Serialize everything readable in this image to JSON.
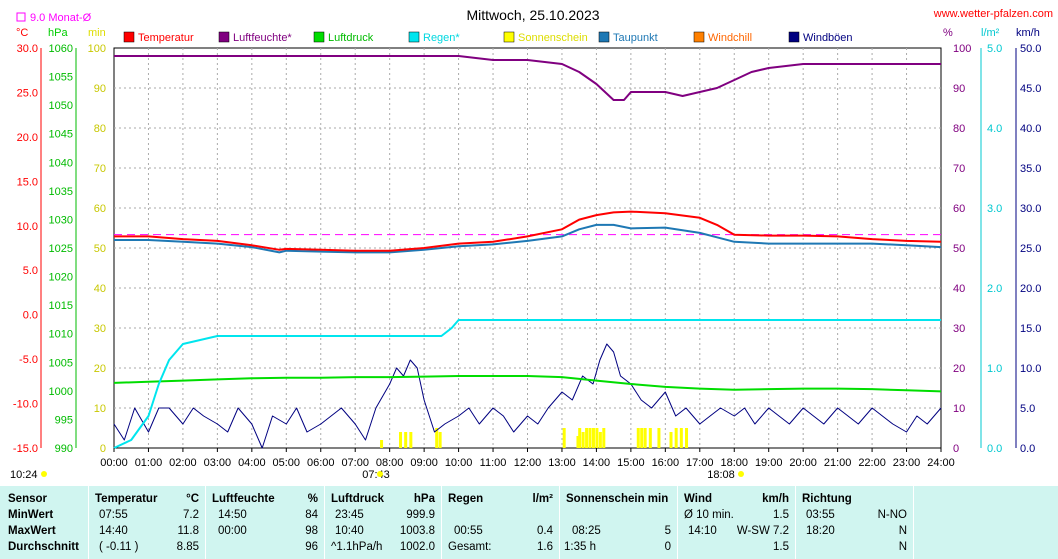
{
  "page": {
    "title": "Mittwoch, 25.10.2023",
    "site": "www.wetter-pfalzen.com",
    "month_avg_label": "9.0 Monat-Ø",
    "unit_celsius": "°C",
    "unit_hpa": "hPa",
    "unit_min": "min",
    "unit_percent": "%",
    "unit_lm2": "l/m²",
    "unit_kmh": "km/h",
    "sunrise": "07:43",
    "sunset": "18:08",
    "first_time": "10:24"
  },
  "colors": {
    "temperature": "#ff0000",
    "humidity": "#800080",
    "pressure": "#00dd00",
    "rain": "#00e5ee",
    "sunshine": "#ffff00",
    "dewpoint": "#1e78b4",
    "windchill": "#ff8000",
    "gust": "#000080",
    "table_bg": "#d0f5f0"
  },
  "chart_data": {
    "type": "line",
    "title": "Mittwoch, 25.10.2023",
    "x_ticks": [
      "00:00",
      "01:00",
      "02:00",
      "03:00",
      "04:00",
      "05:00",
      "06:00",
      "07:00",
      "08:00",
      "09:00",
      "10:00",
      "11:00",
      "12:00",
      "13:00",
      "14:00",
      "15:00",
      "16:00",
      "17:00",
      "18:00",
      "19:00",
      "20:00",
      "21:00",
      "22:00",
      "23:00",
      "24:00"
    ],
    "axes": {
      "temp": {
        "unit": "°C",
        "range": [
          -15,
          30
        ],
        "ticks": [
          "30.0",
          "25.0",
          "20.0",
          "15.0",
          "10.0",
          "5.0",
          "0.0",
          "-5.0",
          "-10.0",
          "-15.0"
        ]
      },
      "pressure": {
        "unit": "hPa",
        "range": [
          990,
          1060
        ],
        "ticks": [
          "1060",
          "1055",
          "1050",
          "1045",
          "1040",
          "1035",
          "1030",
          "1025",
          "1020",
          "1015",
          "1010",
          "1005",
          "1000",
          "995",
          "990"
        ]
      },
      "sun": {
        "unit": "min",
        "range": [
          0,
          100
        ],
        "ticks": [
          "100",
          "90",
          "80",
          "70",
          "60",
          "50",
          "40",
          "30",
          "20",
          "10",
          "0"
        ]
      },
      "percent": {
        "unit": "%",
        "range": [
          0,
          100
        ],
        "ticks": [
          "100",
          "90",
          "80",
          "70",
          "60",
          "50",
          "40",
          "30",
          "20",
          "10",
          "0"
        ]
      },
      "rain": {
        "unit": "l/m²",
        "range": [
          0,
          5
        ],
        "ticks": [
          "5.0",
          "4.0",
          "3.0",
          "2.0",
          "1.0",
          "0.0"
        ]
      },
      "wind": {
        "unit": "km/h",
        "range": [
          0,
          50
        ],
        "ticks": [
          "50.0",
          "45.0",
          "40.0",
          "35.0",
          "30.0",
          "25.0",
          "20.0",
          "15.0",
          "10.0",
          "5.0",
          "0.0"
        ]
      }
    },
    "legend": [
      "Temperatur",
      "Luftfeuchte*",
      "Luftdruck",
      "Regen*",
      "Sonnenschein",
      "Taupunkt",
      "Windchill",
      "Windböen"
    ],
    "month_avg_temp": 9.0,
    "series": [
      {
        "name": "Temperatur",
        "axis": "temp",
        "x": [
          0,
          1,
          2,
          3,
          4,
          4.8,
          5,
          6,
          7,
          8,
          9,
          10,
          11,
          12,
          13,
          13.5,
          14,
          14.5,
          15,
          16,
          17,
          17.5,
          18,
          19,
          20,
          21,
          22,
          23,
          24
        ],
        "y": [
          8.8,
          8.8,
          8.5,
          8.3,
          7.8,
          7.3,
          7.4,
          7.3,
          7.2,
          7.2,
          7.5,
          8.0,
          8.2,
          8.8,
          9.6,
          10.7,
          11.2,
          11.5,
          11.6,
          11.4,
          10.9,
          10.1,
          9.0,
          8.9,
          8.9,
          8.8,
          8.5,
          8.3,
          8.2
        ]
      },
      {
        "name": "Luftfeuchte*",
        "axis": "percent",
        "x": [
          0,
          2,
          4,
          6,
          8,
          10,
          11,
          12,
          13,
          13.5,
          14,
          14.5,
          14.8,
          15,
          15.5,
          16,
          16.5,
          17,
          17.5,
          18,
          18.5,
          19,
          20,
          21,
          22,
          24
        ],
        "y": [
          98,
          98,
          98,
          98,
          98,
          98,
          97,
          97,
          96,
          94,
          91,
          87,
          87,
          89,
          89,
          89,
          88,
          89,
          90,
          92,
          94,
          95,
          96,
          96,
          96,
          96
        ]
      },
      {
        "name": "Luftdruck",
        "axis": "pressure",
        "x": [
          0,
          1,
          2,
          3,
          4,
          5,
          6,
          7,
          8,
          9,
          10,
          11,
          12,
          13,
          14,
          15,
          16,
          17,
          18,
          19,
          20,
          21,
          22,
          23,
          24
        ],
        "y": [
          1001.4,
          1001.6,
          1001.8,
          1002.0,
          1002.2,
          1002.3,
          1002.3,
          1002.4,
          1002.4,
          1002.5,
          1002.6,
          1002.6,
          1002.6,
          1002.4,
          1001.8,
          1001.2,
          1000.7,
          1000.4,
          1000.2,
          1000.3,
          1000.4,
          1000.4,
          1000.3,
          1000.1,
          999.9
        ]
      },
      {
        "name": "Taupunkt",
        "axis": "temp",
        "x": [
          0,
          1,
          2,
          3,
          4,
          4.8,
          5,
          6,
          7,
          8,
          9,
          10,
          11,
          12,
          13,
          13.5,
          14,
          14.5,
          15,
          16,
          17,
          17.5,
          18,
          19,
          20,
          21,
          22,
          23,
          24
        ],
        "y": [
          8.4,
          8.4,
          8.2,
          8.0,
          7.6,
          7.0,
          7.2,
          7.1,
          7.0,
          7.0,
          7.3,
          7.7,
          7.9,
          8.3,
          8.8,
          9.6,
          10.1,
          10.1,
          9.7,
          9.8,
          9.2,
          8.7,
          8.2,
          8.0,
          8.0,
          8.0,
          8.0,
          7.8,
          7.6
        ]
      },
      {
        "name": "Regen*",
        "axis": "rain",
        "x": [
          0,
          0.5,
          1,
          1.3,
          1.6,
          2,
          3,
          4,
          5,
          6,
          7,
          8,
          9,
          9.5,
          9.8,
          10,
          11,
          12,
          13,
          14,
          15,
          16,
          17,
          18,
          19,
          20,
          21,
          22,
          23,
          24
        ],
        "y": [
          0,
          0.1,
          0.4,
          0.8,
          1.1,
          1.3,
          1.4,
          1.4,
          1.4,
          1.4,
          1.4,
          1.4,
          1.4,
          1.4,
          1.5,
          1.6,
          1.6,
          1.6,
          1.6,
          1.6,
          1.6,
          1.6,
          1.6,
          1.6,
          1.6,
          1.6,
          1.6,
          1.6,
          1.6,
          1.6
        ]
      },
      {
        "name": "Windböen",
        "axis": "wind",
        "x": [
          0,
          0.3,
          0.6,
          1,
          1.3,
          1.6,
          2,
          2.3,
          2.6,
          3,
          3.3,
          3.6,
          4,
          4.3,
          4.6,
          5,
          5.3,
          5.6,
          6,
          6.3,
          6.6,
          7,
          7.3,
          7.6,
          8,
          8.2,
          8.4,
          8.6,
          8.8,
          9,
          9.3,
          9.6,
          10,
          10.3,
          10.6,
          11,
          11.3,
          11.6,
          12,
          12.3,
          12.6,
          13,
          13.3,
          13.6,
          13.9,
          14.1,
          14.3,
          14.5,
          14.7,
          15,
          15.3,
          15.6,
          16,
          16.3,
          16.6,
          17,
          17.3,
          17.6,
          18,
          18.3,
          18.6,
          19,
          19.3,
          19.6,
          20,
          20.3,
          20.6,
          21,
          21.3,
          21.6,
          22,
          22.3,
          22.6,
          23,
          23.3,
          23.6,
          24
        ],
        "y": [
          3,
          1,
          5,
          2,
          5,
          5,
          3,
          5,
          4,
          3,
          2,
          5,
          3,
          0,
          4,
          3,
          5,
          2,
          3,
          4,
          5,
          3,
          1,
          5,
          8,
          10,
          9,
          11,
          10,
          6,
          2,
          3,
          4,
          5,
          3,
          5,
          4,
          2,
          4,
          3,
          5,
          7,
          6,
          9,
          8,
          11,
          13,
          12,
          9,
          8,
          6,
          5,
          7,
          4,
          5,
          3,
          4,
          5,
          4,
          5,
          3,
          5,
          4,
          3,
          5,
          4,
          3,
          5,
          4,
          3,
          5,
          4,
          3,
          2,
          4,
          3,
          5
        ]
      },
      {
        "name": "Sonnenschein",
        "axis": "sun",
        "type": "bar",
        "x": [
          7.75,
          8.3,
          8.45,
          8.6,
          9.35,
          9.45,
          13.05,
          13.45,
          13.5,
          13.6,
          13.7,
          13.8,
          13.9,
          14.0,
          14.1,
          14.2,
          15.2,
          15.3,
          15.4,
          15.55,
          15.8,
          16.15,
          16.3,
          16.45,
          16.6
        ],
        "y": [
          2,
          4,
          4,
          4,
          5,
          4,
          5,
          3,
          5,
          4,
          5,
          5,
          5,
          5,
          4,
          5,
          5,
          5,
          5,
          5,
          5,
          4,
          5,
          5,
          5
        ]
      }
    ]
  },
  "table": {
    "row_labels": [
      "Sensor",
      "MinWert",
      "MaxWert",
      "Durchschnitt"
    ],
    "temperature": {
      "title": "Temperatur",
      "unit": "°C",
      "min_time": "07:55",
      "min_val": "7.2",
      "max_time": "14:40",
      "max_val": "11.8",
      "avg_trend": "( -0.11 )",
      "avg_val": "8.85"
    },
    "humidity": {
      "title": "Luftfeuchte",
      "unit": "%",
      "min_time": "14:50",
      "min_val": "84",
      "max_time": "00:00",
      "max_val": "98",
      "avg_val": "96"
    },
    "pressure": {
      "title": "Luftdruck",
      "unit": "hPa",
      "min_time": "23:45",
      "min_val": "999.9",
      "max_time": "10:40",
      "max_val": "1003.8",
      "avg_trend": "^1.1hPa/h",
      "avg_val": "1002.0"
    },
    "rain": {
      "title": "Regen",
      "unit": "l/m²",
      "max_time": "00:55",
      "max_val": "0.4",
      "sum_label": "Gesamt:",
      "sum_val": "1.6"
    },
    "sunshine": {
      "title": "Sonnenschein min",
      "max_time": "08:25",
      "max_val": "5",
      "sum_label": "1:35 h",
      "sum_val": "0"
    },
    "wind": {
      "title": "Wind",
      "unit": "km/h",
      "min_label": "Ø 10 min.",
      "min_val": "1.5",
      "max_time": "14:10",
      "max_val": "W-SW 7.2",
      "avg_val": "1.5"
    },
    "direction": {
      "title": "Richtung",
      "min_time": "03:55",
      "min_val": "N-NO",
      "max_time": "18:20",
      "max_val": "N",
      "avg_val": "N"
    }
  }
}
